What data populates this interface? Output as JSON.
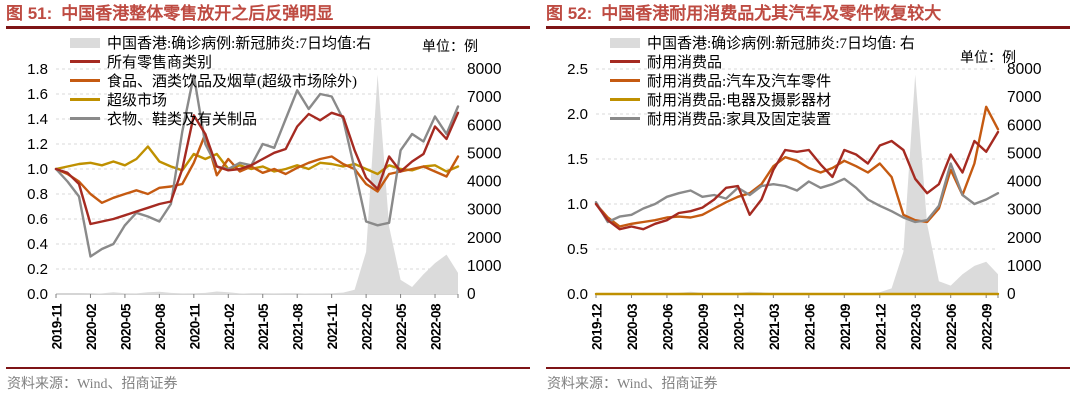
{
  "colors": {
    "title": "#BE4B42",
    "rule": "#7E1416",
    "red_line": "#A52A21",
    "orange_line": "#C55A11",
    "gold_line": "#BF9000",
    "gray_line": "#8A8A8A",
    "covid_area": "#DBDBDB",
    "grid": "#D9D9D9",
    "source_text": "#808080"
  },
  "chart_data": [
    {
      "type": "line",
      "figure_label": "图 51:",
      "title": "中国香港整体零售放开之后反弹明显",
      "unit_note": "单位：例",
      "source": "资料来源：Wind、招商证券",
      "legend_position": "top-left",
      "grid": "horizontal-dashed",
      "ylim_left": [
        0,
        1.8
      ],
      "ylim_right": [
        0,
        8000
      ],
      "yticks_left": [
        "1.8",
        "1.6",
        "1.4",
        "1.2",
        "1.0",
        "0.8",
        "0.6",
        "0.4",
        "0.2",
        "0.0"
      ],
      "yticks_right": [
        "8000",
        "7000",
        "6000",
        "5000",
        "4000",
        "3000",
        "2000",
        "1000",
        "0"
      ],
      "x": [
        "2019-11",
        "2019-12",
        "2020-01",
        "2020-02",
        "2020-03",
        "2020-04",
        "2020-05",
        "2020-06",
        "2020-07",
        "2020-08",
        "2020-09",
        "2020-10",
        "2020-11",
        "2020-12",
        "2021-01",
        "2021-02",
        "2021-03",
        "2021-04",
        "2021-05",
        "2021-06",
        "2021-07",
        "2021-08",
        "2021-09",
        "2021-10",
        "2021-11",
        "2021-12",
        "2022-01",
        "2022-02",
        "2022-03",
        "2022-04",
        "2022-05",
        "2022-06",
        "2022-07",
        "2022-08",
        "2022-09",
        "2022-10"
      ],
      "x_tick_labels": [
        "2019-11",
        "2020-02",
        "2020-05",
        "2020-08",
        "2020-11",
        "2021-02",
        "2021-05",
        "2021-08",
        "2021-11",
        "2022-02",
        "2022-05",
        "2022-08"
      ],
      "area_series": {
        "name": "中国香港:确诊病例:新冠肺炎:7日均值:右",
        "axis": "right",
        "color": "#DBDBDB",
        "values": [
          0,
          0,
          0,
          5,
          20,
          60,
          30,
          20,
          60,
          80,
          40,
          20,
          30,
          40,
          90,
          60,
          20,
          10,
          10,
          15,
          10,
          10,
          20,
          20,
          30,
          50,
          150,
          1500,
          7800,
          2400,
          500,
          250,
          700,
          1100,
          1400,
          750
        ]
      },
      "series": [
        {
          "name": "所有零售商类别",
          "color": "#A52A21",
          "values": [
            1.0,
            0.97,
            0.88,
            0.56,
            0.58,
            0.6,
            0.63,
            0.66,
            0.69,
            0.72,
            0.74,
            1.0,
            1.43,
            1.28,
            1.02,
            0.99,
            1.0,
            1.03,
            1.08,
            1.13,
            1.16,
            1.34,
            1.44,
            1.39,
            1.45,
            1.42,
            1.15,
            0.93,
            0.84,
            1.1,
            0.98,
            1.06,
            1.12,
            1.34,
            1.24,
            1.45
          ]
        },
        {
          "name": "食品、酒类饮品及烟草(超级市场除外)",
          "color": "#C55A11",
          "values": [
            1.0,
            0.96,
            0.9,
            0.8,
            0.73,
            0.77,
            0.8,
            0.83,
            0.8,
            0.85,
            0.86,
            0.88,
            1.05,
            1.28,
            0.95,
            1.08,
            0.98,
            1.02,
            0.97,
            1.0,
            0.96,
            1.01,
            1.05,
            1.08,
            1.1,
            1.04,
            1.0,
            0.88,
            0.82,
            0.96,
            0.98,
            1.0,
            1.02,
            0.98,
            0.94,
            1.1
          ]
        },
        {
          "name": "超级市场",
          "color": "#BF9000",
          "values": [
            1.0,
            1.02,
            1.04,
            1.05,
            1.03,
            1.06,
            1.03,
            1.08,
            1.18,
            1.06,
            1.02,
            0.99,
            1.12,
            1.08,
            1.12,
            1.0,
            1.03,
            1.0,
            1.02,
            0.98,
            1.0,
            1.03,
            1.0,
            1.05,
            1.04,
            1.02,
            1.04,
            1.0,
            0.96,
            1.03,
            1.0,
            0.99,
            1.02,
            1.03,
            0.98,
            1.02
          ]
        },
        {
          "name": "衣物、鞋类及有关制品",
          "color": "#8A8A8A",
          "values": [
            1.0,
            0.9,
            0.78,
            0.3,
            0.36,
            0.4,
            0.55,
            0.65,
            0.62,
            0.58,
            0.72,
            1.3,
            1.75,
            1.2,
            1.02,
            1.0,
            1.05,
            1.03,
            1.2,
            1.17,
            1.4,
            1.63,
            1.48,
            1.6,
            1.58,
            1.4,
            1.0,
            0.58,
            0.55,
            0.57,
            1.15,
            1.28,
            1.22,
            1.42,
            1.28,
            1.5
          ]
        }
      ]
    },
    {
      "type": "line",
      "figure_label": "图 52:",
      "title": "中国香港耐用消费品尤其汽车及零件恢复较大",
      "unit_note": "单位：例",
      "source": "资料来源：Wind、招商证券",
      "legend_position": "top-left",
      "grid": "horizontal-dashed",
      "ylim_left": [
        0,
        2.5
      ],
      "ylim_right": [
        0,
        8000
      ],
      "yticks_left": [
        "2.5",
        "2.0",
        "1.5",
        "1.0",
        "0.5",
        "0.0"
      ],
      "yticks_right": [
        "8000",
        "7000",
        "6000",
        "5000",
        "4000",
        "3000",
        "2000",
        "1000",
        "0"
      ],
      "x": [
        "2019-12",
        "2020-01",
        "2020-02",
        "2020-03",
        "2020-04",
        "2020-05",
        "2020-06",
        "2020-07",
        "2020-08",
        "2020-09",
        "2020-10",
        "2020-11",
        "2020-12",
        "2021-01",
        "2021-02",
        "2021-03",
        "2021-04",
        "2021-05",
        "2021-06",
        "2021-07",
        "2021-08",
        "2021-09",
        "2021-10",
        "2021-11",
        "2021-12",
        "2022-01",
        "2022-02",
        "2022-03",
        "2022-04",
        "2022-05",
        "2022-06",
        "2022-07",
        "2022-08",
        "2022-09",
        "2022-10"
      ],
      "x_tick_labels": [
        "2019-12",
        "2020-03",
        "2020-06",
        "2020-09",
        "2020-12",
        "2021-03",
        "2021-06",
        "2021-09",
        "2021-12",
        "2022-03",
        "2022-06",
        "2022-09"
      ],
      "area_series": {
        "name": "中国香港:确诊病例:新冠肺炎:7日均值: 右",
        "axis": "right",
        "color": "#DBDBDB",
        "values": [
          0,
          0,
          0,
          15,
          40,
          30,
          20,
          40,
          80,
          40,
          20,
          25,
          40,
          80,
          60,
          20,
          10,
          10,
          15,
          10,
          10,
          20,
          20,
          30,
          60,
          200,
          1500,
          7800,
          2500,
          450,
          300,
          700,
          1000,
          1150,
          700
        ]
      },
      "series": [
        {
          "name": "耐用消费品",
          "color": "#A52A21",
          "values": [
            1.0,
            0.82,
            0.72,
            0.75,
            0.72,
            0.78,
            0.82,
            0.9,
            0.92,
            0.96,
            1.05,
            1.18,
            1.2,
            0.88,
            1.05,
            1.38,
            1.6,
            1.58,
            1.6,
            1.44,
            1.3,
            1.6,
            1.55,
            1.45,
            1.65,
            1.7,
            1.6,
            1.28,
            1.12,
            1.22,
            1.55,
            1.35,
            1.7,
            1.58,
            1.8
          ]
        },
        {
          "name": "耐用消费品:汽车及汽车零件",
          "color": "#C55A11",
          "values": [
            1.0,
            0.85,
            0.75,
            0.78,
            0.8,
            0.82,
            0.85,
            0.86,
            0.85,
            0.88,
            0.95,
            1.02,
            1.08,
            1.12,
            1.22,
            1.42,
            1.52,
            1.48,
            1.4,
            1.35,
            1.4,
            1.48,
            1.42,
            1.35,
            1.45,
            1.3,
            0.88,
            0.82,
            0.8,
            0.95,
            1.38,
            1.1,
            1.45,
            2.08,
            1.83
          ]
        },
        {
          "name": "耐用消费品:电器及摄影器材",
          "color": "#BF9000",
          "values": [
            0,
            0,
            0,
            0,
            0,
            0,
            0,
            0,
            0,
            0,
            0,
            0,
            0,
            0,
            0,
            0,
            0,
            0,
            0,
            0,
            0,
            0,
            0,
            0,
            0,
            0,
            0,
            0,
            0,
            0,
            0,
            0,
            0,
            0,
            0
          ]
        },
        {
          "name": "耐用消费品:家具及固定装置",
          "color": "#8A8A8A",
          "values": [
            1.02,
            0.8,
            0.86,
            0.88,
            0.95,
            1.0,
            1.08,
            1.12,
            1.15,
            1.08,
            1.1,
            1.06,
            1.18,
            1.1,
            1.2,
            1.22,
            1.2,
            1.15,
            1.25,
            1.18,
            1.22,
            1.28,
            1.18,
            1.05,
            0.98,
            0.92,
            0.85,
            0.8,
            0.82,
            0.98,
            1.45,
            1.1,
            1.0,
            1.05,
            1.12
          ]
        }
      ]
    }
  ]
}
